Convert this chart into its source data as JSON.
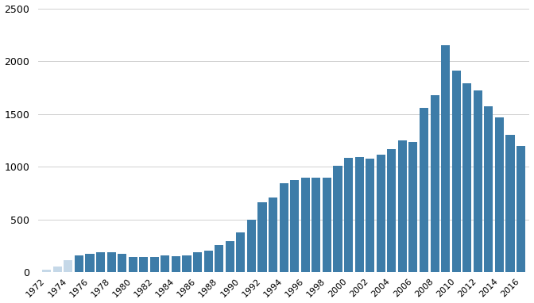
{
  "years": [
    1972,
    1973,
    1974,
    1975,
    1976,
    1977,
    1978,
    1979,
    1980,
    1981,
    1982,
    1983,
    1984,
    1985,
    1986,
    1987,
    1988,
    1989,
    1990,
    1991,
    1992,
    1993,
    1994,
    1995,
    1996,
    1997,
    1998,
    1999,
    2000,
    2001,
    2002,
    2003,
    2004,
    2005,
    2006,
    2007,
    2008,
    2009,
    2010,
    2011,
    2012,
    2013,
    2014,
    2015,
    2016
  ],
  "values": [
    25,
    55,
    110,
    155,
    170,
    185,
    185,
    170,
    145,
    145,
    145,
    160,
    150,
    160,
    185,
    200,
    255,
    295,
    375,
    495,
    660,
    705,
    845,
    875,
    895,
    895,
    895,
    1005,
    1085,
    1090,
    1075,
    1115,
    1165,
    1245,
    1235,
    1560,
    1675,
    2150,
    1910,
    1790,
    1725,
    1570,
    1470,
    1300,
    1195
  ],
  "bar_colors_main": "#3d7ca8",
  "bar_colors_faded": "#c5d8e8",
  "faded_years": [
    1972,
    1973,
    1974
  ],
  "background_color": "#ffffff",
  "grid_color": "#d0d0d0",
  "ylim": [
    0,
    2500
  ],
  "yticks": [
    0,
    500,
    1000,
    1500,
    2000,
    2500
  ],
  "xtick_labels": [
    "1972",
    "1974",
    "1976",
    "1978",
    "1980",
    "1982",
    "1984",
    "1986",
    "1988",
    "1990",
    "1992",
    "1994",
    "1996",
    "1998",
    "2000",
    "2002",
    "2004",
    "2006",
    "2008",
    "2010",
    "2012",
    "2014",
    "2016"
  ],
  "xtick_positions": [
    1972,
    1974,
    1976,
    1978,
    1980,
    1982,
    1984,
    1986,
    1988,
    1990,
    1992,
    1994,
    1996,
    1998,
    2000,
    2002,
    2004,
    2006,
    2008,
    2010,
    2012,
    2014,
    2016
  ]
}
